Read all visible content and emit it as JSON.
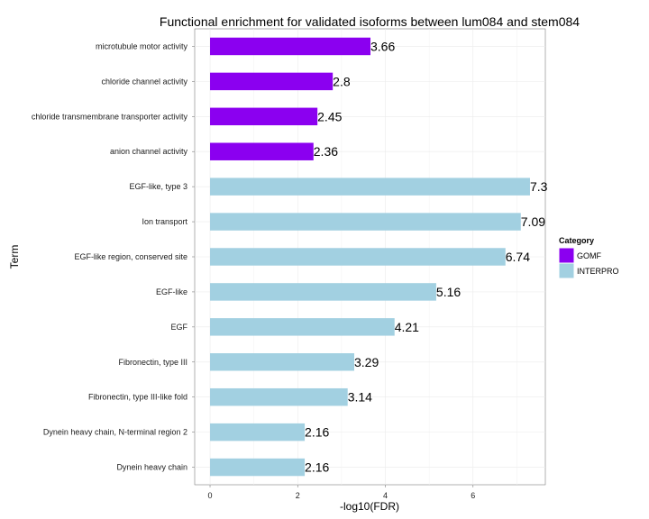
{
  "chart_data": {
    "type": "bar",
    "orientation": "horizontal",
    "title": "Functional enrichment for validated isoforms between lum084 and stem084",
    "xlabel": "-log10(FDR)",
    "ylabel": "Term",
    "xlim": [
      -0.35,
      7.65
    ],
    "xticks": [
      "0",
      "2",
      "4",
      "6"
    ],
    "grid": true,
    "legend": {
      "title": "Category",
      "placement": "right",
      "items": [
        {
          "name": "GOMF",
          "color": "#8B00F0"
        },
        {
          "name": "INTERPRO",
          "color": "#A2D0E1"
        }
      ]
    },
    "bars": [
      {
        "term": "microtubule motor activity",
        "value": 3.66,
        "label": "3.66",
        "category": "GOMF"
      },
      {
        "term": "chloride channel activity",
        "value": 2.8,
        "label": "2.8",
        "category": "GOMF"
      },
      {
        "term": "chloride transmembrane transporter activity",
        "value": 2.45,
        "label": "2.45",
        "category": "GOMF"
      },
      {
        "term": "anion channel activity",
        "value": 2.36,
        "label": "2.36",
        "category": "GOMF"
      },
      {
        "term": "EGF-like, type 3",
        "value": 7.3,
        "label": "7.3",
        "category": "INTERPRO"
      },
      {
        "term": "Ion transport",
        "value": 7.09,
        "label": "7.09",
        "category": "INTERPRO"
      },
      {
        "term": "EGF-like region, conserved site",
        "value": 6.74,
        "label": "6.74",
        "category": "INTERPRO"
      },
      {
        "term": "EGF-like",
        "value": 5.16,
        "label": "5.16",
        "category": "INTERPRO"
      },
      {
        "term": "EGF",
        "value": 4.21,
        "label": "4.21",
        "category": "INTERPRO"
      },
      {
        "term": "Fibronectin, type III",
        "value": 3.29,
        "label": "3.29",
        "category": "INTERPRO"
      },
      {
        "term": "Fibronectin, type III-like fold",
        "value": 3.14,
        "label": "3.14",
        "category": "INTERPRO"
      },
      {
        "term": "Dynein heavy chain, N-terminal region 2",
        "value": 2.16,
        "label": "2.16",
        "category": "INTERPRO"
      },
      {
        "term": "Dynein heavy chain",
        "value": 2.16,
        "label": "2.16",
        "category": "INTERPRO"
      }
    ]
  }
}
